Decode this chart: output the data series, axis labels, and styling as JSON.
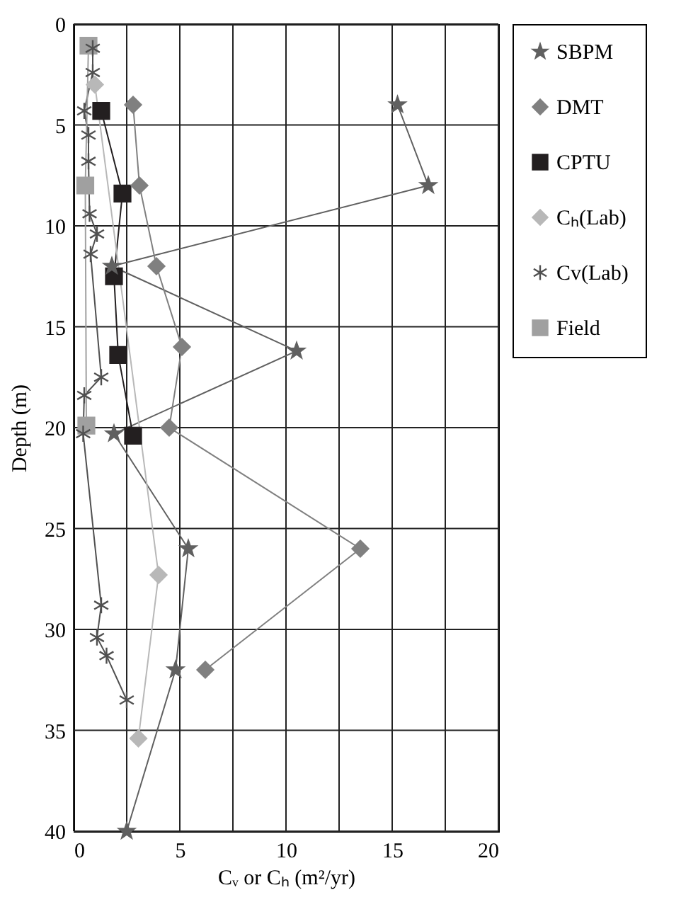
{
  "chart_data": {
    "type": "line",
    "xlabel": "Cᵥ or Cₕ (m²/yr)",
    "ylabel": "Depth (m)",
    "xlim": [
      0,
      20
    ],
    "xticks": [
      0,
      {
        "value": 2.5,
        "label": null
      },
      5,
      {
        "value": 7.5,
        "label": null
      },
      10,
      {
        "value": 12.5,
        "label": null
      },
      15,
      {
        "value": 17.5,
        "label": null
      },
      20
    ],
    "ylim": [
      40,
      0
    ],
    "yticks": [
      0,
      5,
      10,
      15,
      20,
      25,
      30,
      35,
      40
    ],
    "grid": true,
    "legend": "right",
    "line_style": "solid",
    "series": [
      {
        "name": "SBPM",
        "color": "#606060",
        "marker": "star",
        "x": [
          15.25,
          16.7,
          1.8,
          10.5,
          1.9,
          5.4,
          4.8,
          2.5
        ],
        "values": [
          4.0,
          8.0,
          12.0,
          16.2,
          20.3,
          26.0,
          32.0,
          40.0
        ]
      },
      {
        "name": "DMT",
        "color": "#808080",
        "marker": "diamond",
        "x": [
          2.8,
          3.1,
          3.9,
          5.1,
          4.5,
          13.5,
          6.2
        ],
        "values": [
          4.0,
          8.0,
          12.0,
          16.0,
          20.0,
          26.0,
          32.0
        ]
      },
      {
        "name": "CPTU",
        "color": "#231f20",
        "marker": "square",
        "x": [
          1.3,
          2.3,
          1.9,
          2.1,
          2.8
        ],
        "values": [
          4.3,
          8.4,
          12.5,
          16.4,
          20.4
        ]
      },
      {
        "name": "Cₕ(Lab)",
        "color": "#b8b8b8",
        "marker": "diamond",
        "x": [
          1.0,
          4.0,
          3.05
        ],
        "values": [
          3.0,
          27.3,
          35.4
        ]
      },
      {
        "name": "Cv(Lab)",
        "color": "#505050",
        "marker": "cross",
        "x": [
          0.9,
          0.9,
          0.5,
          0.7,
          0.7,
          0.75,
          1.1,
          0.8,
          1.3,
          0.5,
          0.45,
          1.3,
          1.1,
          1.55,
          2.5
        ],
        "values": [
          1.2,
          2.4,
          4.3,
          5.5,
          6.8,
          9.4,
          10.4,
          11.4,
          17.5,
          18.4,
          20.3,
          28.8,
          30.4,
          31.3,
          33.5
        ]
      },
      {
        "name": "Field",
        "color": "#a0a0a0",
        "marker": "square",
        "x": [
          0.7,
          0.55,
          0.6
        ],
        "values": [
          1.07,
          8.0,
          19.9
        ]
      }
    ]
  }
}
